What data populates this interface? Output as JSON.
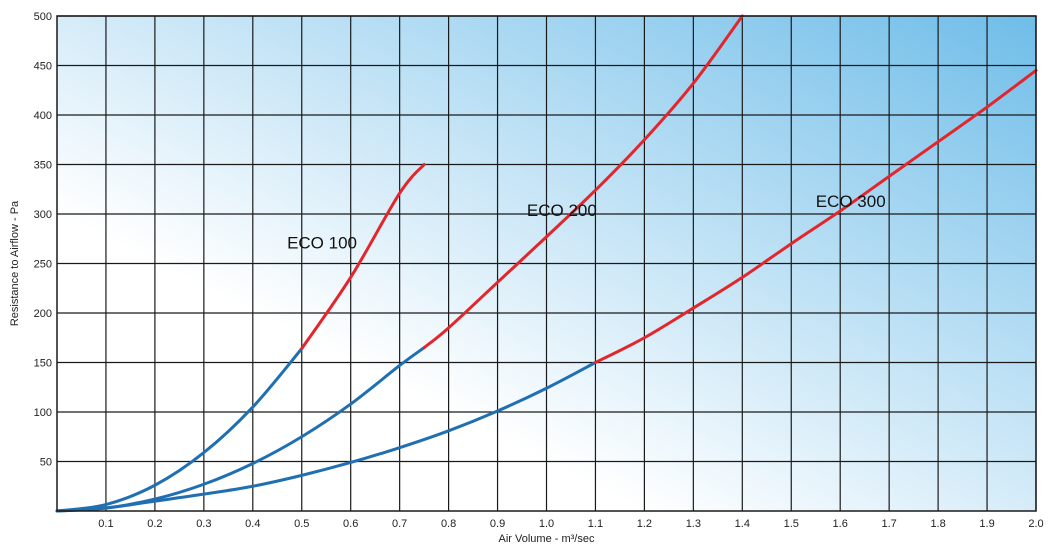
{
  "chart_data": {
    "type": "line",
    "xlabel": "Air Volume - m³/sec",
    "ylabel": "Resistance to Airflow - Pa",
    "xlim": [
      0,
      2.0
    ],
    "ylim": [
      0,
      500
    ],
    "grid": true,
    "x_ticks": [
      "0.1",
      "0.2",
      "0.3",
      "0.4",
      "0.5",
      "0.6",
      "0.7",
      "0.8",
      "0.9",
      "1.0",
      "1.1",
      "1.2",
      "1.3",
      "1.4",
      "1.5",
      "1.6",
      "1.7",
      "1.8",
      "1.9",
      "2.0"
    ],
    "y_ticks": [
      "50",
      "100",
      "150",
      "200",
      "250",
      "300",
      "350",
      "400",
      "450",
      "500"
    ],
    "colors": {
      "low_range": "#1f6fb2",
      "high_range": "#e3262b",
      "gradient_start": "#ffffff",
      "gradient_end": "#6fbde9"
    },
    "series": [
      {
        "name": "ECO 100",
        "label_at": [
          0.47,
          265
        ],
        "points": [
          [
            0,
            0
          ],
          [
            0.1,
            6.5
          ],
          [
            0.2,
            26
          ],
          [
            0.3,
            59
          ],
          [
            0.4,
            105
          ],
          [
            0.5,
            164
          ],
          [
            0.6,
            236
          ],
          [
            0.7,
            321
          ],
          [
            0.75,
            350
          ]
        ],
        "switch_x": 0.5
      },
      {
        "name": "ECO 200",
        "label_at": [
          0.96,
          298
        ],
        "points": [
          [
            0,
            0
          ],
          [
            0.1,
            3
          ],
          [
            0.2,
            12
          ],
          [
            0.3,
            27
          ],
          [
            0.4,
            48
          ],
          [
            0.5,
            75
          ],
          [
            0.6,
            108
          ],
          [
            0.7,
            147
          ],
          [
            0.75,
            165
          ],
          [
            0.8,
            185
          ],
          [
            0.9,
            231
          ],
          [
            1.0,
            277
          ],
          [
            1.1,
            324
          ],
          [
            1.2,
            375
          ],
          [
            1.3,
            432
          ],
          [
            1.4,
            500
          ]
        ],
        "switch_x": 0.75
      },
      {
        "name": "ECO 300",
        "label_at": [
          1.55,
          307
        ],
        "points": [
          [
            0,
            0
          ],
          [
            0.1,
            3
          ],
          [
            0.2,
            10
          ],
          [
            0.3,
            17
          ],
          [
            0.4,
            25
          ],
          [
            0.5,
            36
          ],
          [
            0.6,
            49
          ],
          [
            0.7,
            64
          ],
          [
            0.8,
            81
          ],
          [
            0.9,
            101
          ],
          [
            1.0,
            124
          ],
          [
            1.1,
            150
          ],
          [
            1.2,
            175
          ],
          [
            1.3,
            205
          ],
          [
            1.4,
            236
          ],
          [
            1.5,
            270
          ],
          [
            1.6,
            303
          ],
          [
            1.7,
            338
          ],
          [
            1.8,
            373
          ],
          [
            1.9,
            408
          ],
          [
            2.0,
            445
          ]
        ],
        "switch_x": 1.1
      }
    ]
  }
}
